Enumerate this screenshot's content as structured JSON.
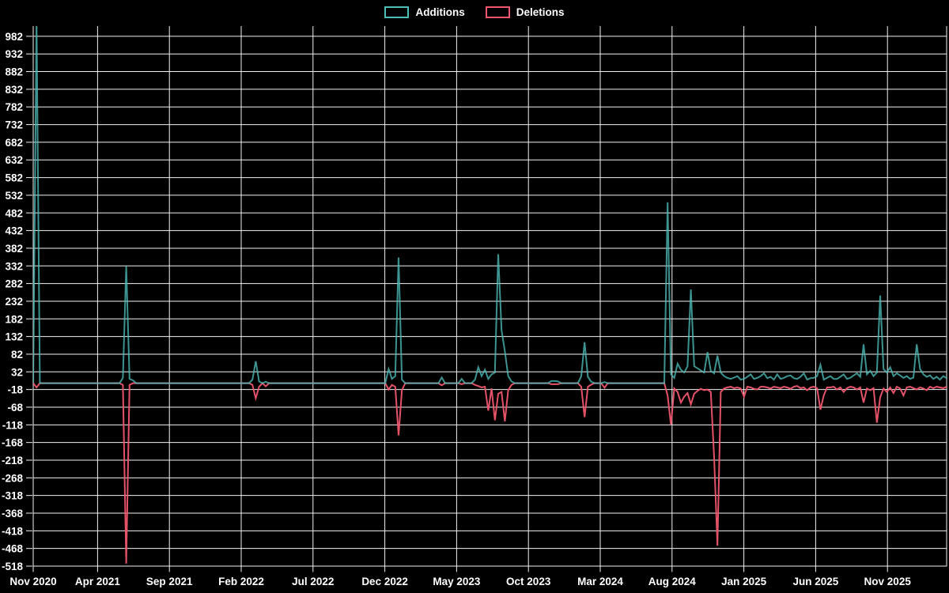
{
  "legend": {
    "items": [
      {
        "label": "Additions"
      },
      {
        "label": "Deletions"
      }
    ]
  },
  "colors": {
    "background": "#000000",
    "grid": "#f2f2f2",
    "text": "#ffffff",
    "additions": "#4dbdb8",
    "deletions": "#f0566e"
  },
  "chart_data": {
    "type": "line",
    "title": "",
    "xlabel": "",
    "ylabel": "",
    "grid": true,
    "legend_position": "top-center",
    "x_tick_labels": [
      "Nov 2020",
      "Apr 2021",
      "Sep 2021",
      "Feb 2022",
      "Jul 2022",
      "Dec 2022",
      "May 2023",
      "Oct 2023",
      "Mar 2024",
      "Aug 2024",
      "Jan 2025",
      "Jun 2025",
      "Nov 2025"
    ],
    "y_ticks": [
      982,
      932,
      882,
      832,
      782,
      732,
      682,
      632,
      582,
      532,
      482,
      432,
      382,
      332,
      282,
      232,
      182,
      132,
      82,
      32,
      -18,
      -68,
      -118,
      -168,
      -218,
      -268,
      -318,
      -368,
      -418,
      -468,
      -518
    ],
    "ylim": [
      -518,
      982
    ],
    "weeks_total": 276,
    "series": [
      {
        "name": "Additions",
        "color": "#4dbdb8"
      },
      {
        "name": "Deletions",
        "color": "#f0566e"
      }
    ],
    "points_note": "weekly data [weekIndex, additions, deletions]; weeks not listed are [0,0]; week 0 = late Nov 2020; additions value 1030 exceeds axis and is clipped at plot top",
    "points": [
      [
        1,
        1030,
        -12
      ],
      [
        27,
        15,
        -5
      ],
      [
        28,
        331,
        -511
      ],
      [
        29,
        12,
        -5
      ],
      [
        30,
        8,
        0
      ],
      [
        66,
        10,
        -5
      ],
      [
        67,
        62,
        -43
      ],
      [
        68,
        5,
        -10
      ],
      [
        70,
        4,
        -9
      ],
      [
        107,
        40,
        -18
      ],
      [
        108,
        12,
        -5
      ],
      [
        109,
        20,
        -10
      ],
      [
        110,
        356,
        -148
      ],
      [
        111,
        10,
        -20
      ],
      [
        123,
        16,
        -6
      ],
      [
        129,
        12,
        -3
      ],
      [
        133,
        10,
        -5
      ],
      [
        134,
        45,
        -8
      ],
      [
        135,
        20,
        -12
      ],
      [
        136,
        38,
        -10
      ],
      [
        137,
        12,
        -78
      ],
      [
        138,
        25,
        -15
      ],
      [
        139,
        30,
        -105
      ],
      [
        140,
        365,
        -30
      ],
      [
        141,
        150,
        -25
      ],
      [
        142,
        90,
        -108
      ],
      [
        143,
        20,
        -20
      ],
      [
        144,
        5,
        -5
      ],
      [
        156,
        6,
        -3
      ],
      [
        157,
        6,
        -3
      ],
      [
        158,
        5,
        -3
      ],
      [
        165,
        20,
        -10
      ],
      [
        166,
        116,
        -96
      ],
      [
        167,
        18,
        -10
      ],
      [
        168,
        4,
        -4
      ],
      [
        172,
        3,
        -13
      ],
      [
        191,
        512,
        -35
      ],
      [
        192,
        25,
        -118
      ],
      [
        193,
        15,
        -15
      ],
      [
        194,
        55,
        -25
      ],
      [
        195,
        38,
        -55
      ],
      [
        196,
        30,
        -38
      ],
      [
        197,
        48,
        -28
      ],
      [
        198,
        265,
        -60
      ],
      [
        199,
        48,
        -30
      ],
      [
        200,
        42,
        -22
      ],
      [
        201,
        36,
        -16
      ],
      [
        202,
        30,
        -20
      ],
      [
        203,
        88,
        -18
      ],
      [
        204,
        35,
        -25
      ],
      [
        205,
        28,
        -210
      ],
      [
        206,
        78,
        -460
      ],
      [
        207,
        30,
        -25
      ],
      [
        208,
        20,
        -15
      ],
      [
        209,
        15,
        -12
      ],
      [
        210,
        12,
        -10
      ],
      [
        211,
        16,
        -14
      ],
      [
        212,
        20,
        -12
      ],
      [
        213,
        10,
        -15
      ],
      [
        214,
        12,
        -38
      ],
      [
        215,
        18,
        -10
      ],
      [
        216,
        25,
        -12
      ],
      [
        217,
        12,
        -16
      ],
      [
        218,
        15,
        -18
      ],
      [
        219,
        20,
        -10
      ],
      [
        220,
        28,
        -10
      ],
      [
        221,
        14,
        -12
      ],
      [
        222,
        18,
        -15
      ],
      [
        223,
        10,
        -10
      ],
      [
        224,
        25,
        -12
      ],
      [
        225,
        12,
        -14
      ],
      [
        226,
        15,
        -10
      ],
      [
        227,
        20,
        -12
      ],
      [
        228,
        22,
        -16
      ],
      [
        229,
        14,
        -10
      ],
      [
        230,
        12,
        -8
      ],
      [
        231,
        18,
        -14
      ],
      [
        232,
        28,
        -12
      ],
      [
        233,
        10,
        -20
      ],
      [
        234,
        14,
        -12
      ],
      [
        235,
        15,
        -10
      ],
      [
        236,
        20,
        -14
      ],
      [
        237,
        52,
        -75
      ],
      [
        238,
        10,
        -35
      ],
      [
        239,
        15,
        -12
      ],
      [
        240,
        20,
        -12
      ],
      [
        241,
        12,
        -10
      ],
      [
        242,
        12,
        -18
      ],
      [
        243,
        18,
        -12
      ],
      [
        244,
        25,
        -25
      ],
      [
        245,
        12,
        -14
      ],
      [
        246,
        15,
        -10
      ],
      [
        247,
        22,
        -12
      ],
      [
        248,
        28,
        -18
      ],
      [
        249,
        18,
        -12
      ],
      [
        250,
        110,
        -55
      ],
      [
        251,
        25,
        -15
      ],
      [
        252,
        35,
        -20
      ],
      [
        253,
        20,
        -14
      ],
      [
        254,
        30,
        -112
      ],
      [
        255,
        248,
        -40
      ],
      [
        256,
        40,
        -15
      ],
      [
        257,
        30,
        -25
      ],
      [
        258,
        45,
        -12
      ],
      [
        259,
        20,
        -28
      ],
      [
        260,
        28,
        -10
      ],
      [
        261,
        22,
        -15
      ],
      [
        262,
        15,
        -35
      ],
      [
        263,
        20,
        -12
      ],
      [
        264,
        12,
        -10
      ],
      [
        265,
        16,
        -14
      ],
      [
        266,
        110,
        -18
      ],
      [
        267,
        40,
        -12
      ],
      [
        268,
        25,
        -15
      ],
      [
        269,
        18,
        -20
      ],
      [
        270,
        22,
        -10
      ],
      [
        271,
        12,
        -14
      ],
      [
        272,
        18,
        -10
      ],
      [
        273,
        10,
        -12
      ],
      [
        274,
        20,
        -14
      ],
      [
        275,
        14,
        -10
      ]
    ]
  }
}
